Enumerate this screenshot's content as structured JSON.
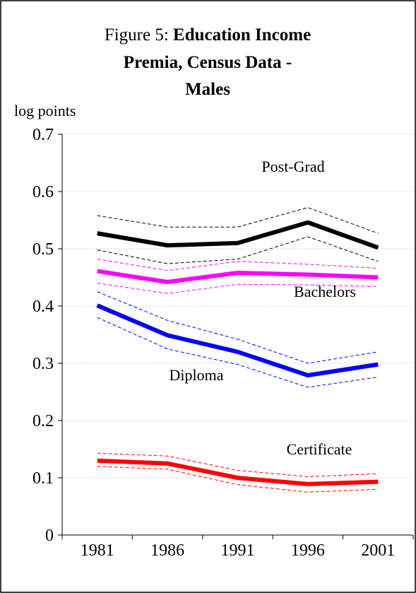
{
  "chart_data": {
    "type": "line",
    "title_prefix": "Figure 5:",
    "title_lines": [
      "Education Income",
      "Premia, Census Data -",
      "Males"
    ],
    "ylabel": "log points",
    "categories": [
      "1981",
      "1986",
      "1991",
      "1996",
      "2001"
    ],
    "ylim": [
      0,
      0.7
    ],
    "yticks": [
      0,
      0.1,
      0.2,
      0.3,
      0.4,
      0.5,
      0.6,
      0.7
    ],
    "grid": true,
    "series": [
      {
        "name": "Post-Grad",
        "color": "#000000",
        "values": [
          0.527,
          0.506,
          0.51,
          0.546,
          0.502
        ],
        "upper": [
          0.558,
          0.538,
          0.538,
          0.572,
          0.527
        ],
        "lower": [
          0.498,
          0.474,
          0.482,
          0.521,
          0.478
        ]
      },
      {
        "name": "Bachelors",
        "color": "#ff00ff",
        "values": [
          0.461,
          0.442,
          0.458,
          0.455,
          0.45
        ],
        "upper": [
          0.482,
          0.462,
          0.478,
          0.473,
          0.466
        ],
        "lower": [
          0.44,
          0.422,
          0.438,
          0.437,
          0.434
        ]
      },
      {
        "name": "Diploma",
        "color": "#0000ff",
        "values": [
          0.401,
          0.349,
          0.32,
          0.279,
          0.298
        ],
        "upper": [
          0.425,
          0.375,
          0.342,
          0.3,
          0.32
        ],
        "lower": [
          0.38,
          0.325,
          0.298,
          0.258,
          0.276
        ]
      },
      {
        "name": "Certificate",
        "color": "#ff0000",
        "values": [
          0.13,
          0.125,
          0.1,
          0.089,
          0.093
        ],
        "upper": [
          0.143,
          0.138,
          0.113,
          0.102,
          0.107
        ],
        "lower": [
          0.12,
          0.115,
          0.088,
          0.075,
          0.08
        ]
      }
    ]
  }
}
